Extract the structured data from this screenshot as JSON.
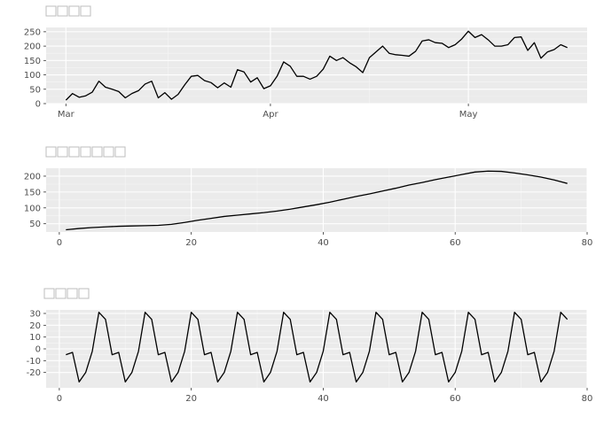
{
  "chart_data": [
    {
      "id": "p1",
      "type": "line",
      "title_glyph_count": 4,
      "x_axis": "date",
      "xlim": [
        "2016-02-27",
        "2016-05-19"
      ],
      "ylim": [
        0,
        265
      ],
      "x_ticks": [
        {
          "value": "2016-03-01",
          "label": "Mar"
        },
        {
          "value": "2016-04-01",
          "label": "Apr"
        },
        {
          "value": "2016-05-01",
          "label": "May"
        }
      ],
      "y_ticks": [
        0,
        50,
        100,
        150,
        200,
        250
      ],
      "grid": true,
      "series": [
        {
          "x": [
            "2016-03-01",
            "2016-03-02",
            "2016-03-03",
            "2016-03-04",
            "2016-03-05",
            "2016-03-06",
            "2016-03-07",
            "2016-03-08",
            "2016-03-09",
            "2016-03-10",
            "2016-03-11",
            "2016-03-12",
            "2016-03-13",
            "2016-03-14",
            "2016-03-15",
            "2016-03-16",
            "2016-03-17",
            "2016-03-18",
            "2016-03-19",
            "2016-03-20",
            "2016-03-21",
            "2016-03-22",
            "2016-03-23",
            "2016-03-24",
            "2016-03-25",
            "2016-03-26",
            "2016-03-27",
            "2016-03-28",
            "2016-03-29",
            "2016-03-30",
            "2016-03-31",
            "2016-04-01",
            "2016-04-02",
            "2016-04-03",
            "2016-04-04",
            "2016-04-05",
            "2016-04-06",
            "2016-04-07",
            "2016-04-08",
            "2016-04-09",
            "2016-04-10",
            "2016-04-11",
            "2016-04-12",
            "2016-04-13",
            "2016-04-14",
            "2016-04-15",
            "2016-04-16",
            "2016-04-17",
            "2016-04-18",
            "2016-04-19",
            "2016-04-20",
            "2016-04-21",
            "2016-04-22",
            "2016-04-23",
            "2016-04-24",
            "2016-04-25",
            "2016-04-26",
            "2016-04-27",
            "2016-04-28",
            "2016-04-29",
            "2016-04-30",
            "2016-05-01",
            "2016-05-02",
            "2016-05-03",
            "2016-05-04",
            "2016-05-05",
            "2016-05-06",
            "2016-05-07",
            "2016-05-08",
            "2016-05-09",
            "2016-05-10",
            "2016-05-11",
            "2016-05-12",
            "2016-05-13",
            "2016-05-14",
            "2016-05-15",
            "2016-05-16"
          ],
          "values": [
            12,
            35,
            22,
            27,
            40,
            78,
            57,
            50,
            42,
            20,
            35,
            45,
            68,
            78,
            20,
            38,
            15,
            32,
            65,
            95,
            98,
            80,
            73,
            55,
            72,
            57,
            118,
            110,
            75,
            90,
            52,
            62,
            95,
            145,
            130,
            95,
            95,
            85,
            95,
            120,
            165,
            150,
            160,
            142,
            128,
            108,
            160,
            180,
            200,
            175,
            170,
            168,
            165,
            182,
            218,
            222,
            212,
            210,
            195,
            205,
            225,
            252,
            230,
            240,
            222,
            200,
            200,
            205,
            230,
            232,
            185,
            212,
            158,
            180,
            188,
            205,
            195
          ]
        }
      ]
    },
    {
      "id": "p2",
      "type": "line",
      "title_glyph_count": 7,
      "xlim": [
        -2,
        80
      ],
      "ylim": [
        24,
        225
      ],
      "x_ticks": [
        0,
        20,
        40,
        60,
        80
      ],
      "y_ticks": [
        50,
        100,
        150,
        200
      ],
      "grid": true,
      "series": [
        {
          "x": [
            1,
            3,
            5,
            7,
            9,
            11,
            13,
            15,
            17,
            19,
            21,
            23,
            25,
            27,
            29,
            31,
            33,
            35,
            37,
            39,
            41,
            43,
            45,
            47,
            49,
            51,
            53,
            55,
            57,
            59,
            61,
            63,
            65,
            67,
            69,
            71,
            73,
            75,
            77
          ],
          "values": [
            31,
            35,
            38,
            40,
            42,
            43,
            44,
            45,
            48,
            54,
            61,
            67,
            73,
            77,
            81,
            85,
            90,
            96,
            103,
            110,
            118,
            127,
            136,
            144,
            153,
            162,
            172,
            180,
            189,
            197,
            205,
            213,
            216,
            215,
            210,
            204,
            197,
            188,
            177
          ]
        }
      ]
    },
    {
      "id": "p3",
      "type": "line",
      "title_glyph_count": 4,
      "xlim": [
        -2,
        80
      ],
      "ylim": [
        -33,
        33
      ],
      "x_ticks": [
        0,
        20,
        40,
        60,
        80
      ],
      "y_ticks": [
        -20,
        -10,
        0,
        10,
        20,
        30
      ],
      "grid": true,
      "series": [
        {
          "x": [
            1,
            2,
            3,
            4,
            5,
            6,
            7,
            8,
            9,
            10,
            11,
            12,
            13,
            14,
            15,
            16,
            17,
            18,
            19,
            20,
            21,
            22,
            23,
            24,
            25,
            26,
            27,
            28,
            29,
            30,
            31,
            32,
            33,
            34,
            35,
            36,
            37,
            38,
            39,
            40,
            41,
            42,
            43,
            44,
            45,
            46,
            47,
            48,
            49,
            50,
            51,
            52,
            53,
            54,
            55,
            56,
            57,
            58,
            59,
            60,
            61,
            62,
            63,
            64,
            65,
            66,
            67,
            68,
            69,
            70,
            71,
            72,
            73,
            74,
            75,
            76,
            77
          ],
          "values": [
            -5,
            -3,
            -28,
            -20,
            -2,
            31,
            25,
            -5,
            -3,
            -28,
            -20,
            -2,
            31,
            25,
            -5,
            -3,
            -28,
            -20,
            -2,
            31,
            25,
            -5,
            -3,
            -28,
            -20,
            -2,
            31,
            25,
            -5,
            -3,
            -28,
            -20,
            -2,
            31,
            25,
            -5,
            -3,
            -28,
            -20,
            -2,
            31,
            25,
            -5,
            -3,
            -28,
            -20,
            -2,
            31,
            25,
            -5,
            -3,
            -28,
            -20,
            -2,
            31,
            25,
            -5,
            -3,
            -28,
            -20,
            -2,
            31,
            25,
            -5,
            -3,
            -28,
            -20,
            -2,
            31,
            25,
            -5,
            -3,
            -28,
            -20,
            -2,
            31,
            25
          ]
        }
      ]
    }
  ]
}
